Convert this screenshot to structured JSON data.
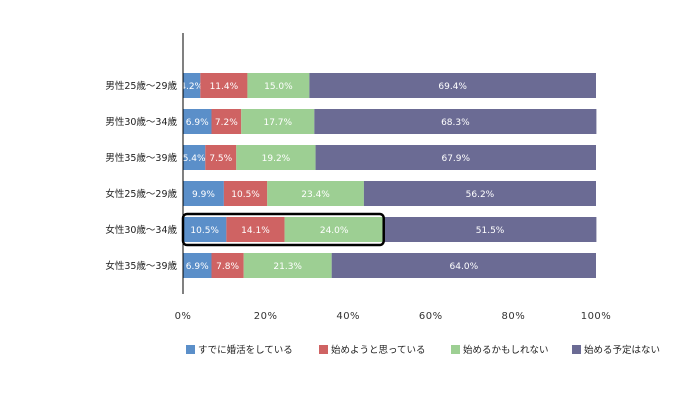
{
  "chart_data": {
    "type": "bar",
    "orientation": "horizontal",
    "stacked": true,
    "percent_scale": true,
    "title": "",
    "xlabel": "",
    "ylabel": "",
    "xlim": [
      0,
      100
    ],
    "xticks": [
      "0%",
      "20%",
      "40%",
      "60%",
      "80%",
      "100%"
    ],
    "grid": false,
    "legend_position": "bottom",
    "categories": [
      "男性25歳〜29歳",
      "男性30歳〜34歳",
      "男性35歳〜39歳",
      "女性25歳〜29歳",
      "女性30歳〜34歳",
      "女性35歳〜39歳"
    ],
    "highlighted_category": "女性30歳〜34歳",
    "series": [
      {
        "name": "すでに婚活をしている",
        "color": "#5b8fc9",
        "values": [
          4.2,
          6.9,
          5.4,
          9.9,
          10.5,
          6.9
        ],
        "labels": [
          "4.2%",
          "6.9%",
          "5.4%",
          "9.9%",
          "10.5%",
          "6.9%"
        ]
      },
      {
        "name": "始めようと思っている",
        "color": "#cf6363",
        "values": [
          11.4,
          7.2,
          7.5,
          10.5,
          14.1,
          7.8
        ],
        "labels": [
          "11.4%",
          "7.2%",
          "7.5%",
          "10.5%",
          "14.1%",
          "7.8%"
        ]
      },
      {
        "name": "始めるかもしれない",
        "color": "#9dcf93",
        "values": [
          15.0,
          17.7,
          19.2,
          23.4,
          24.0,
          21.3
        ],
        "labels": [
          "15.0%",
          "17.7%",
          "19.2%",
          "23.4%",
          "24.0%",
          "21.3%"
        ]
      },
      {
        "name": "始める予定はない",
        "color": "#6b6b94",
        "values": [
          69.4,
          68.3,
          67.9,
          56.2,
          51.5,
          64.0
        ],
        "labels": [
          "69.4%",
          "68.3%",
          "67.9%",
          "56.2%",
          "51.5%",
          "64.0%"
        ]
      }
    ]
  }
}
